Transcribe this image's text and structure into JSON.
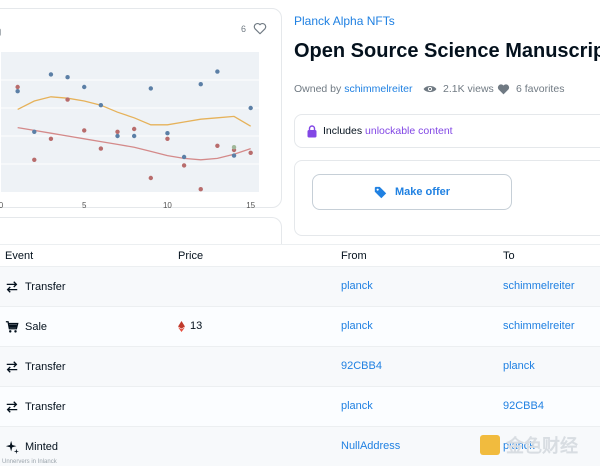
{
  "card": {
    "favorite_count": "6",
    "icons": [
      "lock-icon",
      "heart-outline-icon"
    ]
  },
  "chart_data": {
    "type": "scatter",
    "x_ticks": [
      "0",
      "5",
      "10",
      "15"
    ],
    "xlim": [
      0,
      15.5
    ],
    "ylim": [
      0,
      1
    ],
    "series": [
      {
        "color": "#5b7fa6",
        "points": [
          [
            1,
            0.72
          ],
          [
            2,
            0.43
          ],
          [
            3,
            0.84
          ],
          [
            4,
            0.82
          ],
          [
            5,
            0.75
          ],
          [
            6,
            0.62
          ],
          [
            7,
            0.4
          ],
          [
            8,
            0.4
          ],
          [
            9,
            0.74
          ],
          [
            10,
            0.42
          ],
          [
            11,
            0.25
          ],
          [
            12,
            0.77
          ],
          [
            13,
            0.86
          ],
          [
            14,
            0.26
          ],
          [
            15,
            0.6
          ]
        ]
      },
      {
        "color": "#b86c6c",
        "points": [
          [
            1,
            0.75
          ],
          [
            2,
            0.23
          ],
          [
            3,
            0.38
          ],
          [
            4,
            0.66
          ],
          [
            5,
            0.44
          ],
          [
            6,
            0.31
          ],
          [
            7,
            0.43
          ],
          [
            8,
            0.45
          ],
          [
            9,
            0.1
          ],
          [
            10,
            0.38
          ],
          [
            11,
            0.19
          ],
          [
            12,
            0.02
          ],
          [
            13,
            0.33
          ],
          [
            14,
            0.3
          ],
          [
            15,
            0.28
          ]
        ]
      },
      {
        "color": "#a0b89a",
        "points": [
          [
            14,
            0.32
          ]
        ]
      }
    ],
    "trend_lines": [
      {
        "color": "#e6b25a",
        "points": [
          [
            1,
            0.59
          ],
          [
            2,
            0.65
          ],
          [
            3,
            0.68
          ],
          [
            4,
            0.67
          ],
          [
            5,
            0.65
          ],
          [
            6,
            0.62
          ],
          [
            7,
            0.57
          ],
          [
            8,
            0.53
          ],
          [
            9,
            0.48
          ],
          [
            10,
            0.48
          ],
          [
            11,
            0.5
          ],
          [
            12,
            0.52
          ],
          [
            13,
            0.53
          ],
          [
            14,
            0.54
          ],
          [
            15,
            0.47
          ]
        ]
      },
      {
        "color": "#d48a8a",
        "points": [
          [
            1,
            0.46
          ],
          [
            2,
            0.44
          ],
          [
            3,
            0.42
          ],
          [
            4,
            0.4
          ],
          [
            5,
            0.38
          ],
          [
            6,
            0.36
          ],
          [
            7,
            0.34
          ],
          [
            8,
            0.32
          ],
          [
            9,
            0.29
          ],
          [
            10,
            0.26
          ],
          [
            11,
            0.24
          ],
          [
            12,
            0.23
          ],
          [
            13,
            0.24
          ],
          [
            14,
            0.27
          ],
          [
            15,
            0.31
          ]
        ]
      }
    ]
  },
  "asset": {
    "collection": "Planck Alpha NFTs",
    "title": "Open Source Science Manuscript",
    "owned_by_label": "Owned by",
    "owner": "schimmelreiter",
    "views": "2.1K views",
    "favorites": "6 favorites"
  },
  "unlockable": {
    "prefix": "Includes",
    "highlight": "unlockable content"
  },
  "offer": {
    "button_label": "Make offer"
  },
  "table": {
    "headers": {
      "event": "Event",
      "price": "Price",
      "from": "From",
      "to": "To"
    },
    "rows": [
      {
        "event": "Transfer",
        "icon": "transfer-icon",
        "price": "",
        "from": "planck",
        "to": "schimmelreiter"
      },
      {
        "event": "Sale",
        "icon": "cart-icon",
        "price": "13",
        "from": "planck",
        "to": "schimmelreiter"
      },
      {
        "event": "Transfer",
        "icon": "transfer-icon",
        "price": "",
        "from": "92CBB4",
        "to": "planck"
      },
      {
        "event": "Transfer",
        "icon": "transfer-icon",
        "price": "",
        "from": "planck",
        "to": "92CBB4"
      },
      {
        "event": "Minted",
        "icon": "sparkle-icon",
        "price": "",
        "from": "NullAddress",
        "to": "planck"
      }
    ]
  },
  "watermark": "金色财经",
  "footer_text": "Unnervers in Inlanck",
  "colors": {
    "accent": "#2081e2",
    "purple": "#8247e5",
    "text": "#04111d",
    "muted": "#707a83"
  }
}
